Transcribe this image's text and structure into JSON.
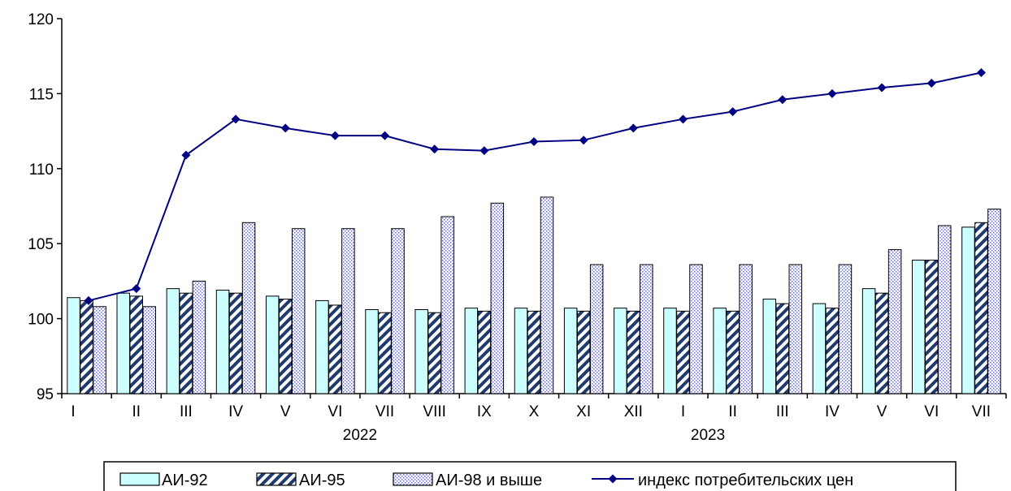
{
  "chart_data": {
    "type": "bar",
    "categories": [
      "I",
      "II",
      "III",
      "IV",
      "V",
      "VI",
      "VII",
      "VIII",
      "IX",
      "X",
      "XI",
      "XII",
      "I",
      "II",
      "III",
      "IV",
      "V",
      "VI",
      "VII"
    ],
    "year_labels": [
      {
        "label": "2022",
        "index": 5.5
      },
      {
        "label": "2023",
        "index": 12.5
      }
    ],
    "ylim": [
      95,
      120
    ],
    "yticks": [
      95,
      100,
      105,
      110,
      115,
      120
    ],
    "legend_position": "bottom",
    "series": [
      {
        "name": "АИ-92",
        "kind": "bar",
        "pattern": "solid",
        "color": "#ccffff",
        "values": [
          101.4,
          101.7,
          102.0,
          101.9,
          101.5,
          101.2,
          100.6,
          100.6,
          100.7,
          100.7,
          100.7,
          100.7,
          100.7,
          100.7,
          101.3,
          101.0,
          102.0,
          103.9,
          106.1
        ]
      },
      {
        "name": "АИ-95",
        "kind": "bar",
        "pattern": "diagonal",
        "color": "#1f3a6e",
        "values": [
          101.2,
          101.5,
          101.7,
          101.7,
          101.3,
          100.9,
          100.4,
          100.4,
          100.5,
          100.5,
          100.5,
          100.5,
          100.5,
          100.5,
          101.0,
          100.7,
          101.7,
          103.9,
          106.4
        ]
      },
      {
        "name": "АИ-98 и выше",
        "kind": "bar",
        "pattern": "dotted",
        "color": "#7b7fd6",
        "values": [
          100.8,
          100.8,
          102.5,
          106.4,
          106.0,
          106.0,
          106.0,
          106.8,
          107.7,
          108.1,
          103.6,
          103.6,
          103.6,
          103.6,
          103.6,
          103.6,
          104.6,
          106.2,
          107.3
        ]
      },
      {
        "name": "индекс потребительских цен",
        "kind": "line",
        "color": "#000080",
        "values": [
          101.2,
          102.0,
          110.9,
          113.3,
          112.7,
          112.2,
          112.2,
          111.3,
          111.2,
          111.8,
          111.9,
          112.7,
          113.3,
          113.8,
          114.6,
          115.0,
          115.4,
          115.7,
          116.4
        ]
      }
    ]
  }
}
